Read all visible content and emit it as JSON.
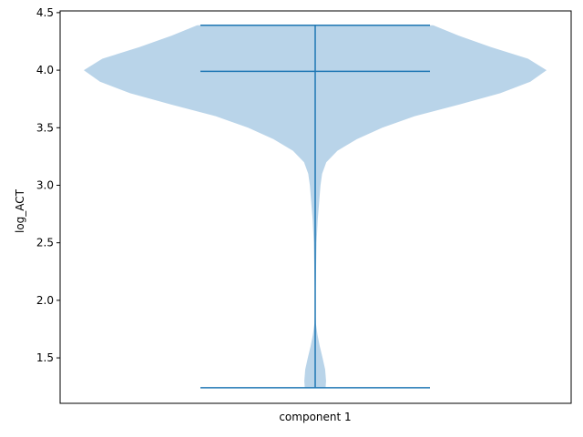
{
  "chart_data": {
    "type": "violin",
    "xlabel": "",
    "ylabel": "log_ACT",
    "ylim": [
      1.105,
      4.515
    ],
    "yticks": [
      1.5,
      2.0,
      2.5,
      3.0,
      3.5,
      4.0,
      4.5
    ],
    "ytick_labels": [
      "1.5",
      "2.0",
      "2.5",
      "3.0",
      "3.5",
      "4.0",
      "4.5"
    ],
    "categories": [
      "component 1"
    ],
    "violins": [
      {
        "category": "component 1",
        "min": 1.24,
        "max": 4.39,
        "median": 3.99,
        "density_profile": [
          [
            1.24,
            0.045
          ],
          [
            1.3,
            0.047
          ],
          [
            1.4,
            0.043
          ],
          [
            1.5,
            0.032
          ],
          [
            1.6,
            0.02
          ],
          [
            1.7,
            0.01
          ],
          [
            1.8,
            0.003
          ],
          [
            1.9,
            0.0015
          ],
          [
            2.1,
            0.002
          ],
          [
            2.3,
            0.004
          ],
          [
            2.5,
            0.006
          ],
          [
            2.7,
            0.011
          ],
          [
            2.9,
            0.019
          ],
          [
            3.0,
            0.023
          ],
          [
            3.1,
            0.03
          ],
          [
            3.2,
            0.048
          ],
          [
            3.3,
            0.096
          ],
          [
            3.4,
            0.18
          ],
          [
            3.5,
            0.29
          ],
          [
            3.6,
            0.43
          ],
          [
            3.7,
            0.62
          ],
          [
            3.8,
            0.8
          ],
          [
            3.9,
            0.93
          ],
          [
            4.0,
            1.0
          ],
          [
            4.1,
            0.92
          ],
          [
            4.2,
            0.76
          ],
          [
            4.3,
            0.62
          ],
          [
            4.39,
            0.51
          ]
        ]
      }
    ]
  },
  "colors": {
    "violin_fill": "#b9d4e9",
    "lines": "#1f77b4",
    "axes": "#000000"
  }
}
